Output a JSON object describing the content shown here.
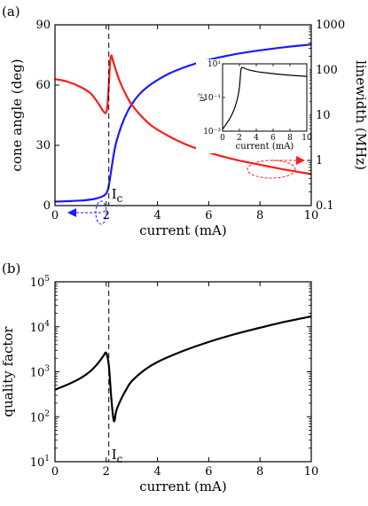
{
  "chart_data": [
    {
      "panel_label": "(a)",
      "type": "line",
      "xlabel": "current (mA)",
      "ylabel": "cone angle (deg)",
      "y2label": "linewidth (MHz)",
      "xlim": [
        0,
        10
      ],
      "ylim": [
        0,
        90
      ],
      "y2lim": [
        0.1,
        1000
      ],
      "y2scale": "log",
      "xticks": [
        0,
        2,
        4,
        6,
        8,
        10
      ],
      "yticks": [
        0,
        30,
        60,
        90
      ],
      "y2ticks": [
        0.1,
        1,
        10,
        100,
        1000
      ],
      "y2ticklabels": [
        "0.1",
        "1",
        "10",
        "100",
        "1000"
      ],
      "threshold_label": "I",
      "threshold_sub": "c",
      "threshold_x": 2.1,
      "series": [
        {
          "axis": "left",
          "color": "#1a1aff",
          "x": [
            0,
            0.5,
            1.0,
            1.5,
            1.8,
            2.0,
            2.1,
            2.2,
            2.3,
            2.4,
            2.6,
            2.8,
            3.0,
            3.3,
            3.6,
            4.0,
            4.5,
            5.0,
            5.5,
            6.0,
            7.0,
            8.0,
            9.0,
            10.0
          ],
          "y": [
            2,
            2.2,
            2.5,
            3.2,
            4.3,
            6,
            10,
            18,
            26,
            32,
            40,
            46,
            50.5,
            55.5,
            59,
            62.5,
            66,
            68.6,
            70.8,
            72.6,
            75.3,
            77.3,
            78.9,
            80.2
          ]
        },
        {
          "axis": "right",
          "color": "#ff1a1a",
          "x": [
            0,
            0.5,
            1.0,
            1.4,
            1.7,
            1.9,
            2.0,
            2.05,
            2.1,
            2.15,
            2.2,
            2.25,
            2.35,
            2.5,
            2.7,
            3.0,
            3.5,
            4.0,
            5.0,
            6.0,
            7.0,
            8.0,
            9.0,
            10.0
          ],
          "y": [
            63,
            55,
            42,
            30,
            18,
            12,
            11.5,
            18,
            45,
            150,
            210,
            170,
            110,
            62,
            34,
            17,
            8,
            4.8,
            2.4,
            1.5,
            1.05,
            0.8,
            0.62,
            0.5
          ]
        }
      ],
      "inset": {
        "type": "line",
        "ylabel": "ν²",
        "xlabel": "current (mA)",
        "xlim": [
          0,
          10
        ],
        "ylim": [
          0.001,
          10
        ],
        "yscale": "log",
        "xticks": [
          0,
          2,
          4,
          6,
          8,
          10
        ],
        "yticklabels": [
          "10⁻³",
          "10⁻¹",
          "10¹"
        ],
        "yticks": [
          0.001,
          0.1,
          10
        ],
        "color": "#000000",
        "x": [
          0,
          0.4,
          0.8,
          1.2,
          1.5,
          1.8,
          2.0,
          2.1,
          2.2,
          2.4,
          3.0,
          4.0,
          6.0,
          8.0,
          10.0
        ],
        "y": [
          0.0013,
          0.0025,
          0.005,
          0.012,
          0.03,
          0.1,
          0.4,
          1.5,
          5,
          6,
          4.5,
          3.5,
          2.6,
          2.1,
          1.8
        ]
      }
    },
    {
      "panel_label": "(b)",
      "type": "line",
      "xlabel": "current (mA)",
      "ylabel": "quality factor",
      "xlim": [
        0,
        10
      ],
      "ylim": [
        10,
        100000
      ],
      "yscale": "log",
      "xticks": [
        0,
        2,
        4,
        6,
        8,
        10
      ],
      "yticks": [
        10,
        100,
        1000,
        10000,
        100000
      ],
      "threshold_label": "I",
      "threshold_sub": "c",
      "threshold_x": 2.1,
      "series": [
        {
          "color": "#000000",
          "x": [
            0,
            0.5,
            1.0,
            1.4,
            1.7,
            1.9,
            2.0,
            2.1,
            2.2,
            2.3,
            2.4,
            2.6,
            2.8,
            3.0,
            3.5,
            4.0,
            5.0,
            6.0,
            7.0,
            8.0,
            9.0,
            10.0
          ],
          "y": [
            400,
            520,
            720,
            1050,
            1600,
            2300,
            2600,
            1400,
            250,
            80,
            140,
            260,
            420,
            620,
            1100,
            1650,
            2900,
            4600,
            6800,
            9500,
            13000,
            17000
          ]
        }
      ]
    }
  ]
}
